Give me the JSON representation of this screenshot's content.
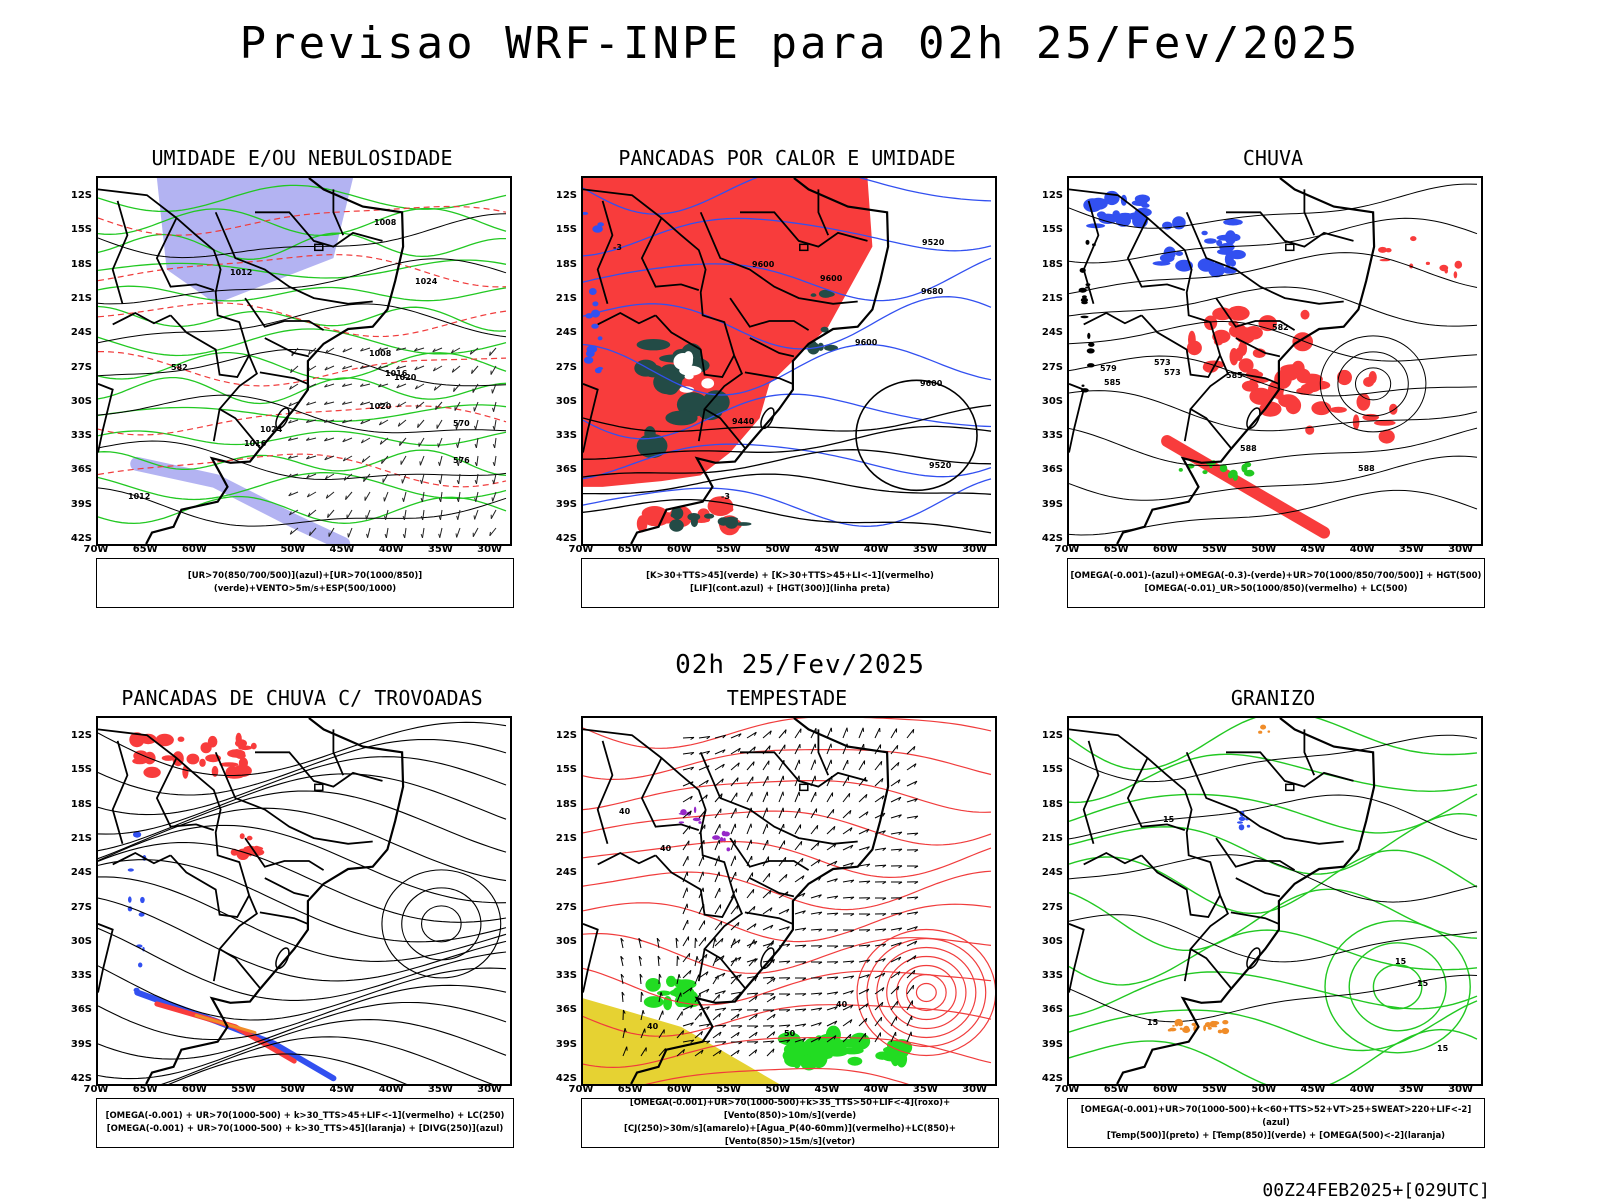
{
  "title": "Previsao WRF-INPE  para 02h 25/Fev/2025",
  "subtitle": "02h 25/Fev/2025",
  "footer": "00Z24FEB2025+[029UTC]",
  "lat_labels": [
    "12S",
    "15S",
    "18S",
    "21S",
    "24S",
    "27S",
    "30S",
    "33S",
    "36S",
    "39S",
    "42S"
  ],
  "lon_labels": [
    "70W",
    "65W",
    "60W",
    "55W",
    "50W",
    "45W",
    "40W",
    "35W",
    "30W"
  ],
  "colors": {
    "humidity_blue": "#a6a6f0",
    "green_contour": "#22c822",
    "red_contour": "#f03c3c",
    "red_fill": "#f83c3c",
    "dark_teal": "#234b46",
    "blue": "#3250f0",
    "yellow": "#e6d232",
    "green_fill": "#22dc22",
    "orange": "#f08c28",
    "purple": "#9628c8"
  },
  "panels": [
    {
      "id": "umidade",
      "title": "UMIDADE E/OU NEBULOSIDADE",
      "legend": [
        "[UR>70(850/700/500)](azul)+[UR>70(1000/850)](verde)+VENTO>5m/s+ESP(500/1000)"
      ],
      "contour_labels": [
        "1012",
        "1012",
        "1016",
        "1016",
        "1020",
        "1020",
        "1024",
        "1024",
        "1008",
        "1008",
        "576",
        "582",
        "570"
      ]
    },
    {
      "id": "pancadas-calor",
      "title": "PANCADAS POR CALOR E UMIDADE",
      "legend": [
        "[K>30+TTS>45](verde) + [K>30+TTS>45+LI<-1](vermelho)",
        "[LIF](cont.azul) + [HGT(300)](linha preta)"
      ],
      "contour_labels": [
        "9600",
        "9680",
        "9600",
        "9600",
        "9600",
        "9520",
        "9440",
        "9520",
        "-3",
        "-3"
      ]
    },
    {
      "id": "chuva",
      "title": "CHUVA",
      "legend": [
        "[OMEGA(-0.001)-(azul)+OMEGA(-0.3)-(verde)+UR>70(1000/850/700/500)] + HGT(500)",
        "[OMEGA(-0.01)_UR>50(1000/850)(vermelho) + LC(500)"
      ],
      "contour_labels": [
        "588",
        "588",
        "585",
        "585",
        "579",
        "582",
        "573",
        "573"
      ]
    },
    {
      "id": "pancadas-trovoadas",
      "title": "PANCADAS DE CHUVA C/ TROVOADAS",
      "legend": [
        "[OMEGA(-0.001) + UR>70(1000-500) + k>30_TTS>45+LIF<-1](vermelho) + LC(250)",
        "[OMEGA(-0.001) + UR>70(1000-500) + k>30_TTS>45](laranja) + [DIVG(250)](azul)"
      ],
      "contour_labels": []
    },
    {
      "id": "tempestade",
      "title": "TEMPESTADE",
      "legend": [
        "[OMEGA(-0.001)+UR>70(1000-500)+k>35_TTS>50+LIF<-4](roxo)+[Vento(850)>10m/s](verde)",
        "[CJ(250)>30m/s](amarelo)+[Agua_P(40-60mm)](vermelho)+LC(850)+[Vento(850)>15m/s](vetor)"
      ],
      "contour_labels": [
        "50",
        "40",
        "40",
        "40",
        "40"
      ]
    },
    {
      "id": "granizo",
      "title": "GRANIZO",
      "legend": [
        "[OMEGA(-0.001)+UR>70(1000-500)+k<60+TTS>52+VT>25+SWEAT>220+LIF<-2](azul)",
        "[Temp(500)](preto) + [Temp(850)](verde) + [OMEGA(500)<-2](laranja)"
      ],
      "contour_labels": [
        "15",
        "15",
        "15",
        "15",
        "15"
      ]
    }
  ]
}
